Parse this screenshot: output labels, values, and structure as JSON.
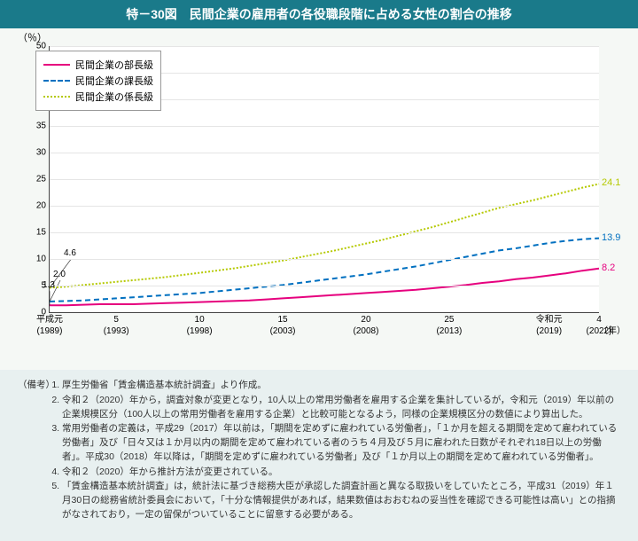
{
  "title": "特－30図　民間企業の雇用者の各役職段階に占める女性の割合の推移",
  "chart": {
    "type": "line",
    "y_unit": "（％）",
    "x_unit": "（年）",
    "ylim": [
      0,
      50
    ],
    "ytick_step": 5,
    "yticks": [
      0,
      5,
      10,
      15,
      20,
      25,
      30,
      35,
      40,
      45,
      50
    ],
    "background_color": "#ffffff",
    "grid_color": "#e5e5e5",
    "xticks": [
      {
        "x": 0,
        "top": "平成元",
        "bottom": "(1989)"
      },
      {
        "x": 4,
        "top": "5",
        "bottom": "(1993)"
      },
      {
        "x": 9,
        "top": "10",
        "bottom": "(1998)"
      },
      {
        "x": 14,
        "top": "15",
        "bottom": "(2003)"
      },
      {
        "x": 19,
        "top": "20",
        "bottom": "(2008)"
      },
      {
        "x": 24,
        "top": "25",
        "bottom": "(2013)"
      },
      {
        "x": 30,
        "top": "令和元",
        "bottom": "(2019)"
      },
      {
        "x": 33,
        "top": "4",
        "bottom": "(2022)"
      }
    ],
    "x_count": 34,
    "series": [
      {
        "name": "民間企業の部長級",
        "color": "#e6007e",
        "dash": "none",
        "width": 2,
        "start_callout": "1.3",
        "end_label": "8.2",
        "values": [
          1.3,
          1.3,
          1.4,
          1.5,
          1.5,
          1.5,
          1.6,
          1.7,
          1.8,
          1.9,
          2.0,
          2.1,
          2.2,
          2.4,
          2.6,
          2.8,
          3.0,
          3.2,
          3.4,
          3.6,
          3.8,
          4.0,
          4.2,
          4.5,
          4.8,
          5.1,
          5.5,
          5.8,
          6.2,
          6.5,
          6.9,
          7.3,
          7.8,
          8.2
        ]
      },
      {
        "name": "民間企業の課長級",
        "color": "#0070c0",
        "dash": "6,4",
        "width": 2,
        "start_callout": "2.0",
        "end_label": "13.9",
        "values": [
          2.0,
          2.1,
          2.2,
          2.4,
          2.6,
          2.8,
          3.0,
          3.2,
          3.4,
          3.6,
          3.9,
          4.2,
          4.5,
          4.8,
          5.1,
          5.5,
          5.9,
          6.3,
          6.7,
          7.1,
          7.6,
          8.1,
          8.6,
          9.2,
          9.8,
          10.4,
          11.0,
          11.6,
          12.0,
          12.5,
          13.0,
          13.4,
          13.7,
          13.9
        ]
      },
      {
        "name": "民間企業の係長級",
        "color": "#b5c900",
        "dash": "2,2",
        "width": 2,
        "start_callout": "4.6",
        "end_label": "24.1",
        "values": [
          4.6,
          4.8,
          5.1,
          5.4,
          5.7,
          6.0,
          6.3,
          6.6,
          7.0,
          7.4,
          7.8,
          8.2,
          8.7,
          9.2,
          9.7,
          10.3,
          10.9,
          11.5,
          12.2,
          12.9,
          13.6,
          14.4,
          15.2,
          16.0,
          16.9,
          17.8,
          18.7,
          19.6,
          20.3,
          21.0,
          21.8,
          22.6,
          23.4,
          24.1
        ]
      }
    ]
  },
  "notes_head": "（備考）",
  "notes": [
    "厚生労働省「賃金構造基本統計調査」より作成。",
    "令和２（2020）年から，調査対象が変更となり，10人以上の常用労働者を雇用する企業を集計しているが，令和元（2019）年以前の企業規模区分（100人以上の常用労働者を雇用する企業）と比較可能となるよう，同様の企業規模区分の数値により算出した。",
    "常用労働者の定義は，平成29（2017）年以前は，「期間を定めずに雇われている労働者」，「１か月を超える期間を定めて雇われている労働者」及び「日々又は１か月以内の期間を定めて雇われている者のうち４月及び５月に雇われた日数がそれぞれ18日以上の労働者」。平成30（2018）年以降は，「期間を定めずに雇われている労働者」及び「１か月以上の期間を定めて雇われている労働者」。",
    "令和２（2020）年から推計方法が変更されている。",
    "「賃金構造基本統計調査」は，統計法に基づき総務大臣が承認した調査計画と異なる取扱いをしていたところ，平成31（2019）年１月30日の総務省統計委員会において，「十分な情報提供があれば，結果数値はおおむねの妥当性を確認できる可能性は高い」との指摘がなされており，一定の留保がついていることに留意する必要がある。"
  ]
}
